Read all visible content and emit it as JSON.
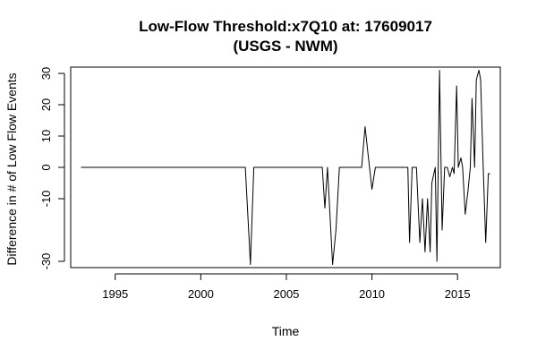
{
  "chart_data": {
    "type": "line",
    "title": "Low-Flow Threshold:x7Q10 at: 17609017",
    "subtitle": "(USGS - NWM)",
    "xlabel": "Time",
    "ylabel": "Difference in # of Low Flow Events",
    "xlim": [
      1992.4,
      2017.5
    ],
    "ylim": [
      -32.0,
      32.0
    ],
    "x_ticks": [
      1995,
      2000,
      2005,
      2010,
      2015
    ],
    "y_ticks": [
      -30,
      -10,
      0,
      10,
      20,
      30
    ],
    "grid": false,
    "legend": "none",
    "line_color": "#000000",
    "series": [
      {
        "x": [
          1993.0,
          2002.6,
          2002.9,
          2003.1,
          2007.1,
          2007.25,
          2007.4,
          2007.7,
          2007.9,
          2008.1,
          2009.4,
          2009.6,
          2009.8,
          2010.0,
          2010.2,
          2012.1,
          2012.2,
          2012.35,
          2012.6,
          2012.8,
          2012.95,
          2013.1,
          2013.25,
          2013.4,
          2013.5,
          2013.7,
          2013.8,
          2013.95,
          2014.1,
          2014.25,
          2014.4,
          2014.55,
          2014.7,
          2014.8,
          2014.95,
          2015.05,
          2015.2,
          2015.3,
          2015.45,
          2015.6,
          2015.75,
          2015.85,
          2016.0,
          2016.1,
          2016.25,
          2016.35,
          2016.5,
          2016.65,
          2016.8,
          2016.9
        ],
        "values": [
          0,
          0,
          -31,
          0,
          0,
          -13,
          0,
          -31,
          -20,
          0,
          0,
          13,
          3,
          -7,
          0,
          0,
          -24,
          0,
          0,
          -24,
          -10,
          -27,
          -10,
          -27,
          -5,
          0,
          -30,
          31,
          -20,
          0,
          0,
          -3,
          0,
          -2,
          26,
          0,
          3,
          0,
          -15,
          -8,
          0,
          22,
          0,
          28,
          31,
          28,
          0,
          -24,
          -2,
          -2
        ]
      }
    ]
  }
}
